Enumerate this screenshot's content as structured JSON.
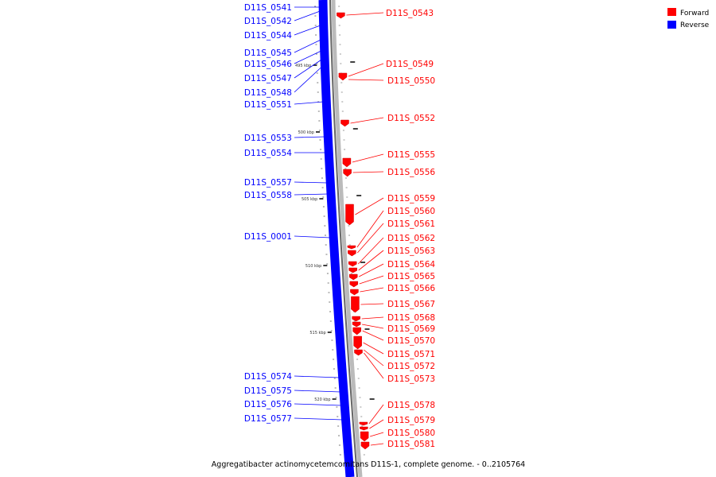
{
  "legend": {
    "forward_label": "Forward",
    "reverse_label": "Reverse",
    "forward_color": "#ff0000",
    "reverse_color": "#0000ff"
  },
  "caption": "Aggregatibacter actinomycetemcomitans D11S-1, complete genome. - 0..2105764",
  "position_ticks": [
    "495 kbp",
    "500 kbp",
    "505 kbp",
    "510 kbp",
    "515 kbp",
    "520 kbp"
  ],
  "reverse_genes": [
    "D11S_0541",
    "D11S_0542",
    "D11S_0544",
    "D11S_0545",
    "D11S_0546",
    "D11S_0547",
    "D11S_0548",
    "D11S_0551",
    "D11S_0553",
    "D11S_0554",
    "D11S_0557",
    "D11S_0558",
    "D11S_0001",
    "D11S_0574",
    "D11S_0575",
    "D11S_0576",
    "D11S_0577"
  ],
  "forward_genes": [
    "D11S_0543",
    "D11S_0549",
    "D11S_0550",
    "D11S_0552",
    "D11S_0555",
    "D11S_0556",
    "D11S_0559",
    "D11S_0560",
    "D11S_0561",
    "D11S_0562",
    "D11S_0563",
    "D11S_0564",
    "D11S_0565",
    "D11S_0566",
    "D11S_0567",
    "D11S_0568",
    "D11S_0569",
    "D11S_0570",
    "D11S_0571",
    "D11S_0572",
    "D11S_0573",
    "D11S_0578",
    "D11S_0579",
    "D11S_0580",
    "D11S_0581"
  ]
}
